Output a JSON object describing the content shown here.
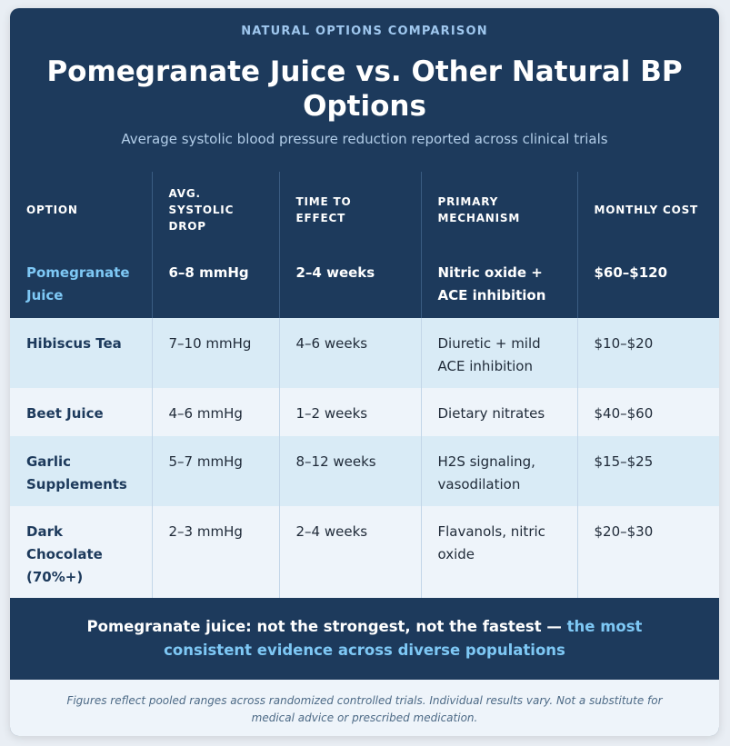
{
  "header": {
    "eyebrow": "NATURAL OPTIONS COMPARISON",
    "title": "Pomegranate Juice vs. Other Natural BP Options",
    "subtitle": "Average systolic blood pressure reduction reported across clinical trials"
  },
  "table": {
    "headers": [
      "OPTION",
      "AVG. SYSTOLIC DROP",
      "TIME TO EFFECT",
      "PRIMARY MECHANISM",
      "MONTHLY COST"
    ],
    "rows": [
      [
        "Pomegranate Juice",
        "6–8 mmHg",
        "2–4 weeks",
        "Nitric oxide + ACE inhibition",
        "$60–$120"
      ],
      [
        "Hibiscus Tea",
        "7–10 mmHg",
        "4–6 weeks",
        "Diuretic + mild ACE inhibition",
        "$10–$20"
      ],
      [
        "Beet Juice",
        "4–6 mmHg",
        "1–2 weeks",
        "Dietary nitrates",
        "$40–$60"
      ],
      [
        "Garlic Supplements",
        "5–7 mmHg",
        "8–12 weeks",
        "H2S signaling, vasodilation",
        "$15–$25"
      ],
      [
        "Dark Chocolate (70%+)",
        "2–3 mmHg",
        "2–4 weeks",
        "Flavanols, nitric oxide",
        "$20–$30"
      ]
    ]
  },
  "banner": {
    "lead": "Pomegranate juice: not the strongest, not the fastest — ",
    "accent": "the most consistent evidence across diverse populations"
  },
  "footer": {
    "note": "Figures reflect pooled ranges across randomized controlled trials. Individual results vary. Not a substitute for medical advice or prescribed medication."
  },
  "colors": {
    "navy": "#1d3a5c",
    "accent_blue": "#7ec8f5",
    "row_alt": "#d9ebf6",
    "row_plain": "#eef4fa"
  }
}
